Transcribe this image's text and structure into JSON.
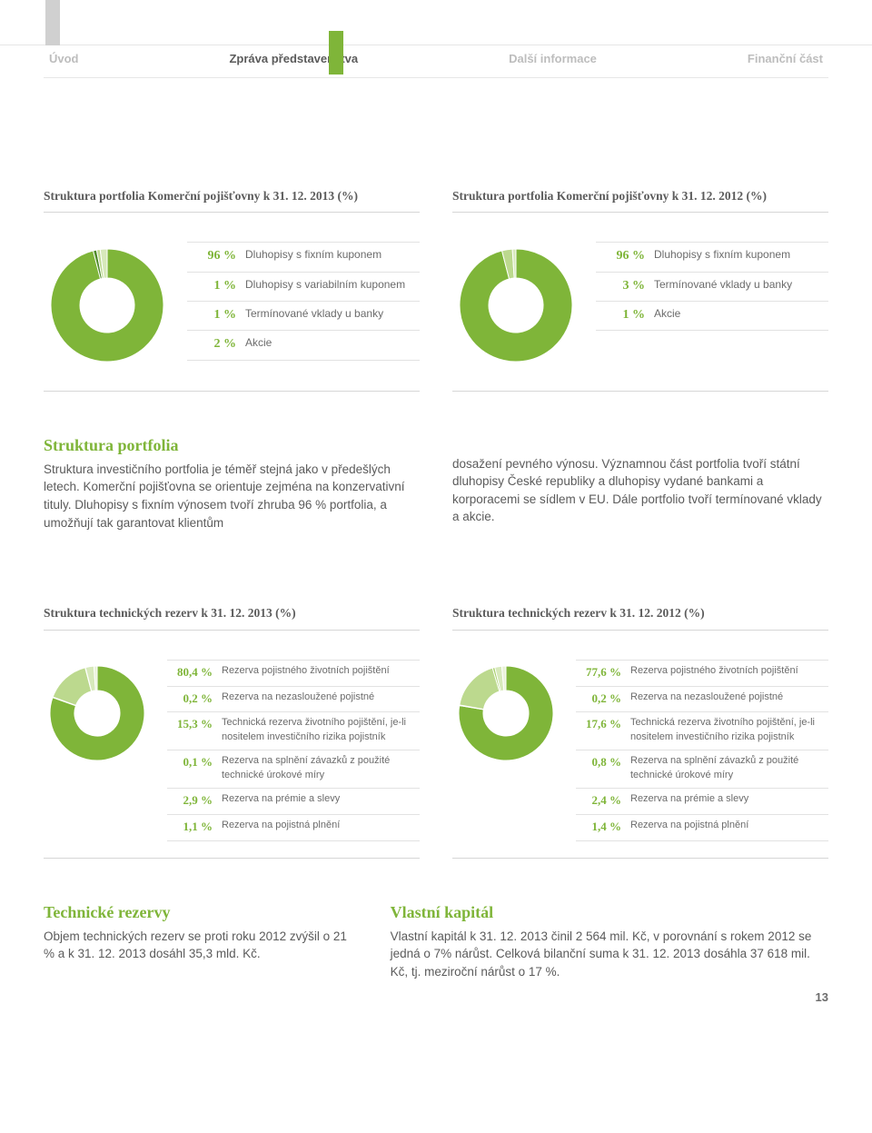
{
  "nav": {
    "items": [
      "Úvod",
      "Zpráva představenstva",
      "Další informace",
      "Finanční část"
    ],
    "active_index": 1,
    "marker_gray_color": "#d0d0d0",
    "marker_green_color": "#7fb539"
  },
  "colors": {
    "primary_green": "#7fb539",
    "dark_green": "#4f8a28",
    "light_green": "#bcd98e",
    "lighter_green": "#d7e9bb",
    "grey_line": "#d6d6d6",
    "text": "#5b5b5b",
    "muted": "#bdbdbd"
  },
  "donut_styling": {
    "outer_radius": 62,
    "inner_radius": 30,
    "background": "#ffffff",
    "stroke": "#ffffff",
    "stroke_width": 1
  },
  "portfolio_2013": {
    "type": "pie",
    "title": "Struktura portfolia Komerční pojišťovny k 31. 12. 2013 (%)",
    "slices": [
      {
        "pct": "96 %",
        "value": 96,
        "label": "Dluhopisy s fixním kuponem",
        "color": "#7fb539"
      },
      {
        "pct": "1 %",
        "value": 1,
        "label": "Dluhopisy s variabilním kuponem",
        "color": "#4f8a28"
      },
      {
        "pct": "1 %",
        "value": 1,
        "label": "Termínované vklady u banky",
        "color": "#bcd98e"
      },
      {
        "pct": "2 %",
        "value": 2,
        "label": "Akcie",
        "color": "#d7e9bb"
      }
    ]
  },
  "portfolio_2012": {
    "type": "pie",
    "title": "Struktura portfolia Komerční pojišťovny k 31. 12. 2012 (%)",
    "slices": [
      {
        "pct": "96 %",
        "value": 96,
        "label": "Dluhopisy s fixním kuponem",
        "color": "#7fb539"
      },
      {
        "pct": "3 %",
        "value": 3,
        "label": "Termínované vklady u banky",
        "color": "#bcd98e"
      },
      {
        "pct": "1 %",
        "value": 1,
        "label": "Akcie",
        "color": "#d7e9bb"
      }
    ]
  },
  "portfolio_text": {
    "heading": "Struktura portfolia",
    "col1": "Struktura investičního portfolia je téměř stejná jako v předešlých letech. Komerční pojišťovna se orientuje zejména na konzervativní tituly. Dluhopisy s fixním výnosem tvoří zhruba 96 % portfolia, a umožňují tak garantovat klientům",
    "col2": "dosažení pevného výnosu. Významnou část portfolia tvoří státní dluhopisy České republiky a dluhopisy vydané bankami a korporacemi se sídlem v EU. Dále portfolio tvoří termínované vklady a akcie."
  },
  "reserves_2013": {
    "type": "pie",
    "title": "Struktura technických rezerv k 31. 12. 2013 (%)",
    "slices": [
      {
        "pct": "80,4 %",
        "value": 80.4,
        "label": "Rezerva pojistného životních pojištění",
        "color": "#7fb539"
      },
      {
        "pct": "0,2 %",
        "value": 0.2,
        "label": "Rezerva na nezasloužené pojistné",
        "color": "#4f8a28"
      },
      {
        "pct": "15,3 %",
        "value": 15.3,
        "label": "Technická rezerva životního pojištění, je-li nositelem investičního rizika pojistník",
        "color": "#bcd98e"
      },
      {
        "pct": "0,1 %",
        "value": 0.1,
        "label": "Rezerva na splnění závazků z použité technické úrokové míry",
        "color": "#a8cf6b"
      },
      {
        "pct": "2,9 %",
        "value": 2.9,
        "label": "Rezerva na prémie a slevy",
        "color": "#d7e9bb"
      },
      {
        "pct": "1,1 %",
        "value": 1.1,
        "label": "Rezerva na pojistná plnění",
        "color": "#e9f2d8"
      }
    ]
  },
  "reserves_2012": {
    "type": "pie",
    "title": "Struktura technických rezerv k 31. 12. 2012 (%)",
    "slices": [
      {
        "pct": "77,6 %",
        "value": 77.6,
        "label": "Rezerva pojistného životních pojištění",
        "color": "#7fb539"
      },
      {
        "pct": "0,2 %",
        "value": 0.2,
        "label": "Rezerva na nezasloužené pojistné",
        "color": "#4f8a28"
      },
      {
        "pct": "17,6 %",
        "value": 17.6,
        "label": "Technická rezerva životního pojištění, je-li nositelem investičního rizika pojistník",
        "color": "#bcd98e"
      },
      {
        "pct": "0,8 %",
        "value": 0.8,
        "label": "Rezerva na splnění závazků z použité technické úrokové míry",
        "color": "#a8cf6b"
      },
      {
        "pct": "2,4 %",
        "value": 2.4,
        "label": "Rezerva na prémie a slevy",
        "color": "#d7e9bb"
      },
      {
        "pct": "1,4 %",
        "value": 1.4,
        "label": "Rezerva na pojistná plnění",
        "color": "#e9f2d8"
      }
    ]
  },
  "tech_reserves_text": {
    "heading": "Technické rezervy",
    "body": "Objem technických rezerv se proti roku 2012 zvýšil o 21 % a k 31. 12. 2013 dosáhl 35,3 mld. Kč."
  },
  "equity_text": {
    "heading": "Vlastní kapitál",
    "body": "Vlastní kapitál k 31. 12. 2013 činil 2 564 mil. Kč, v porovnání s rokem 2012 se jedná o 7% nárůst. Celková bilanční suma k 31. 12. 2013 dosáhla 37 618 mil. Kč, tj. meziroční nárůst o 17 %."
  },
  "page_number": "13"
}
